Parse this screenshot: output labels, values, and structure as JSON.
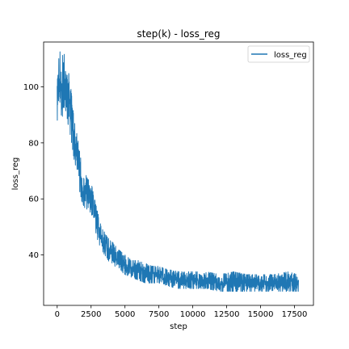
{
  "chart_data": {
    "type": "line",
    "title": "step(k) - loss_reg",
    "xlabel": "step",
    "ylabel": "loss_reg",
    "xlim": [
      -1000,
      18900
    ],
    "ylim": [
      22,
      116
    ],
    "xticks": [
      0,
      2500,
      5000,
      7500,
      10000,
      12500,
      15000,
      17500
    ],
    "yticks": [
      40,
      60,
      80,
      100
    ],
    "grid": false,
    "legend_position": "top-right",
    "series": [
      {
        "name": "loss_reg",
        "color": "#1f77b4",
        "x": [
          0,
          250,
          500,
          750,
          1000,
          1250,
          1500,
          1750,
          2000,
          2250,
          2500,
          2750,
          3000,
          3250,
          3500,
          3750,
          4000,
          4500,
          5000,
          5500,
          6000,
          6500,
          7000,
          7500,
          8000,
          9000,
          10000,
          11000,
          12000,
          13000,
          14000,
          15000,
          16000,
          17000,
          17800
        ],
        "y_min": [
          88,
          90,
          89,
          88,
          82,
          74,
          68,
          60,
          57,
          56,
          55,
          50,
          45,
          42,
          40,
          38,
          37,
          35,
          33,
          32,
          31,
          30,
          30,
          30,
          29,
          28,
          28,
          28,
          27,
          27,
          27,
          27,
          27,
          27,
          27
        ],
        "y_max": [
          110,
          113,
          112,
          108,
          100,
          88,
          82,
          74,
          70,
          67,
          66,
          60,
          55,
          50,
          48,
          46,
          45,
          42,
          40,
          38,
          38,
          37,
          36,
          36,
          35,
          34,
          34,
          34,
          33,
          34,
          33,
          33,
          33,
          34,
          33
        ]
      }
    ]
  }
}
